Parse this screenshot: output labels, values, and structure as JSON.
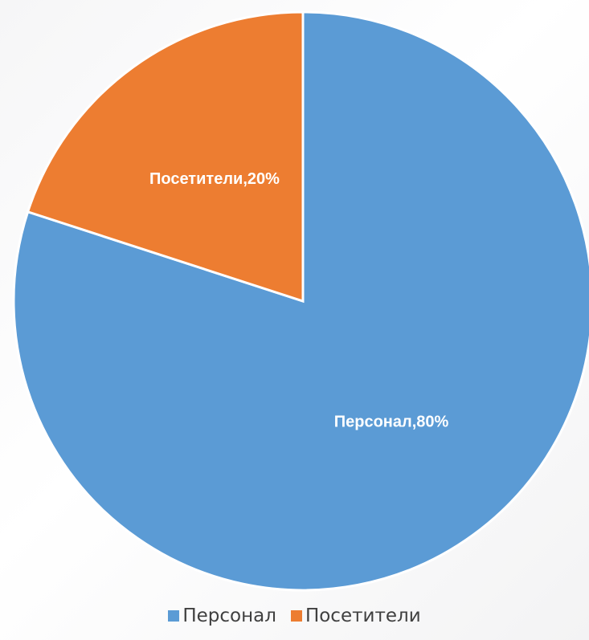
{
  "chart_data": {
    "type": "pie",
    "slices": [
      {
        "name": "Персонал",
        "value": 80,
        "label": "Персонал,80%",
        "color": "#5b9bd5"
      },
      {
        "name": "Посетители",
        "value": 20,
        "label": "Посетители,20%",
        "color": "#ed7d31"
      }
    ],
    "legend_position": "bottom",
    "start": "top, clockwise"
  }
}
